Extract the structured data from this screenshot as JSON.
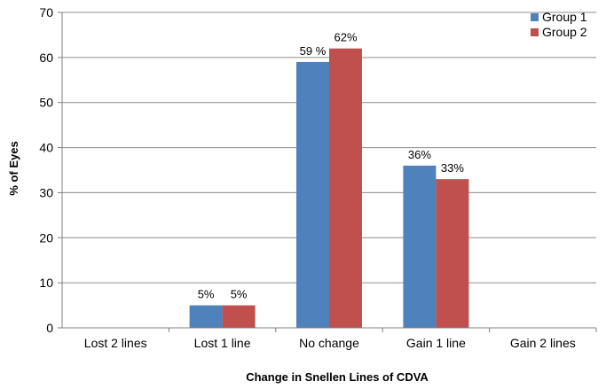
{
  "chart_data": {
    "type": "bar",
    "title": "",
    "xlabel": "Change in Snellen Lines of CDVA",
    "ylabel": "% of Eyes",
    "ylim": [
      0,
      70
    ],
    "yticks": [
      0,
      10,
      20,
      30,
      40,
      50,
      60,
      70
    ],
    "grid": true,
    "legend_position": "top-right",
    "categories": [
      "Lost 2 lines",
      "Lost 1 line",
      "No change",
      "Gain 1 line",
      "Gain 2 lines"
    ],
    "series": [
      {
        "name": "Group 1",
        "color": "#4f81bd",
        "values": [
          0,
          5,
          59,
          36,
          0
        ],
        "labels": [
          "",
          "5%",
          "59 %",
          "36%",
          ""
        ]
      },
      {
        "name": "Group 2",
        "color": "#c0504d",
        "values": [
          0,
          5,
          62,
          33,
          0
        ],
        "labels": [
          "",
          "5%",
          "62%",
          "33%",
          ""
        ]
      }
    ]
  }
}
